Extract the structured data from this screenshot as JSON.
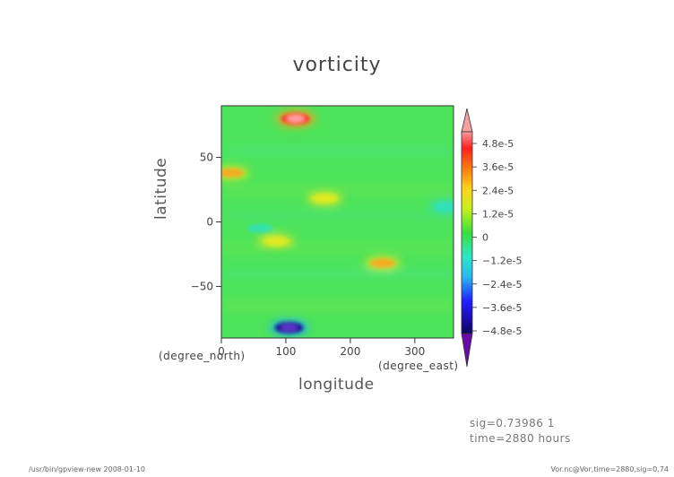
{
  "chart_data": {
    "type": "heatmap",
    "title": "vorticity",
    "xlabel": "longitude",
    "ylabel": "latitude",
    "x_unit": "(degree_east)",
    "y_unit": "(degree_north)",
    "xlim": [
      0,
      360
    ],
    "ylim": [
      -90,
      90
    ],
    "x_ticks": [
      "0",
      "100",
      "200",
      "300"
    ],
    "y_ticks": [
      "50",
      "0",
      "−50"
    ],
    "colorbar": {
      "labels": [
        "4.8e-5",
        "3.6e-5",
        "2.4e-5",
        "1.2e-5",
        "0",
        "−1.2e-5",
        "−2.4e-5",
        "−3.6e-5",
        "−4.8e-5"
      ],
      "values": [
        4.8e-05,
        3.6e-05,
        2.4e-05,
        1.2e-05,
        0,
        -1.2e-05,
        -2.4e-05,
        -3.6e-05,
        -4.8e-05
      ]
    },
    "features": [
      {
        "lon": 115,
        "lat": 80,
        "value": 4.5e-05
      },
      {
        "lon": 105,
        "lat": -82,
        "value": -4.5e-05
      },
      {
        "lon": 15,
        "lat": 38,
        "value": 2.6e-05
      },
      {
        "lon": 250,
        "lat": -32,
        "value": 1.8e-05
      },
      {
        "lon": 160,
        "lat": 18,
        "value": 1.4e-05
      },
      {
        "lon": 85,
        "lat": -15,
        "value": 1.2e-05
      },
      {
        "lon": 350,
        "lat": 12,
        "value": -1.5e-05
      },
      {
        "lon": 60,
        "lat": -5,
        "value": -1e-05
      }
    ]
  },
  "info": {
    "sig_line": "sig=0.73986 1",
    "time_line": "time=2880 hours"
  },
  "footer": {
    "left": "/usr/bin/gpview-new  2008-01-10",
    "right": "Vor.nc@Vor,time=2880,sig=0.74"
  }
}
